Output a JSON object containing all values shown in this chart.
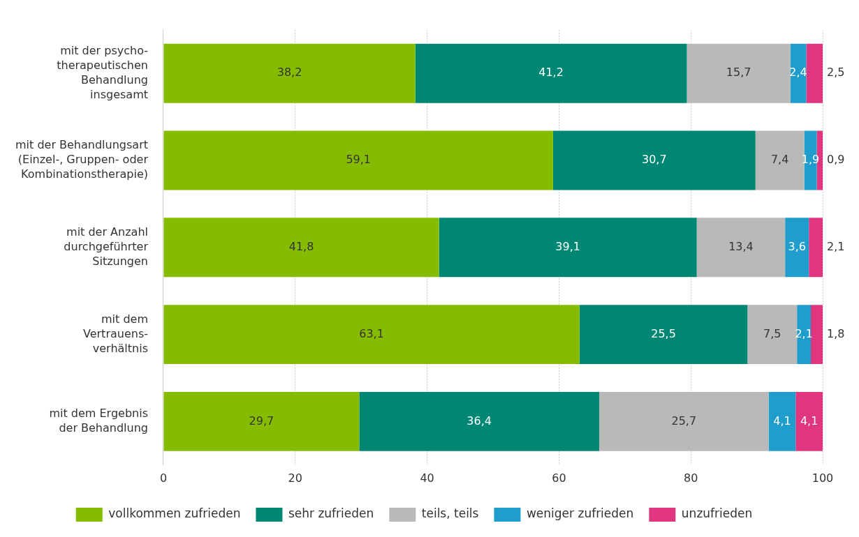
{
  "chart_data": {
    "type": "bar",
    "orientation": "horizontal",
    "stacked": true,
    "categories": [
      "mit der psycho-\ntherapeutischen\nBehandlung\ninsgesamt",
      "mit der Behandlungsart\n(Einzel-, Gruppen- oder\nKombinationstherapie)",
      "mit der Anzahl\ndurchgeführter\nSitzungen",
      "mit dem\nVertrauens-\nverhältnis",
      "mit dem Ergebnis\nder Behandlung"
    ],
    "series": [
      {
        "name": "vollkommen zufrieden",
        "color": "#86bc00",
        "values": [
          38.2,
          59.1,
          41.8,
          63.1,
          29.7
        ],
        "value_labels": [
          "38,2",
          "59,1",
          "41,8",
          "63,1",
          "29,7"
        ]
      },
      {
        "name": "sehr zufrieden",
        "color": "#008774",
        "values": [
          41.2,
          30.7,
          39.1,
          25.5,
          36.4
        ],
        "value_labels": [
          "41,2",
          "30,7",
          "39,1",
          "25,5",
          "36,4"
        ]
      },
      {
        "name": "teils, teils",
        "color": "#b9b9b9",
        "values": [
          15.7,
          7.4,
          13.4,
          7.5,
          25.7
        ],
        "value_labels": [
          "15,7",
          "7,4",
          "13,4",
          "7,5",
          "25,7"
        ]
      },
      {
        "name": "weniger zufrieden",
        "color": "#1f9ece",
        "values": [
          2.4,
          1.9,
          3.6,
          2.1,
          4.1
        ],
        "value_labels": [
          "2,4",
          "1,9",
          "3,6",
          "2,1",
          "4,1"
        ]
      },
      {
        "name": "unzufrieden",
        "color": "#e0357f",
        "values": [
          2.5,
          0.9,
          2.1,
          1.8,
          4.1
        ],
        "value_labels": [
          "2,5",
          "0,9",
          "2,1",
          "1,8",
          "4,1"
        ]
      }
    ],
    "xlim": [
      0,
      100
    ],
    "xticks": [
      0,
      20,
      40,
      60,
      80,
      100
    ],
    "grid": "x",
    "legend": "bottom"
  }
}
